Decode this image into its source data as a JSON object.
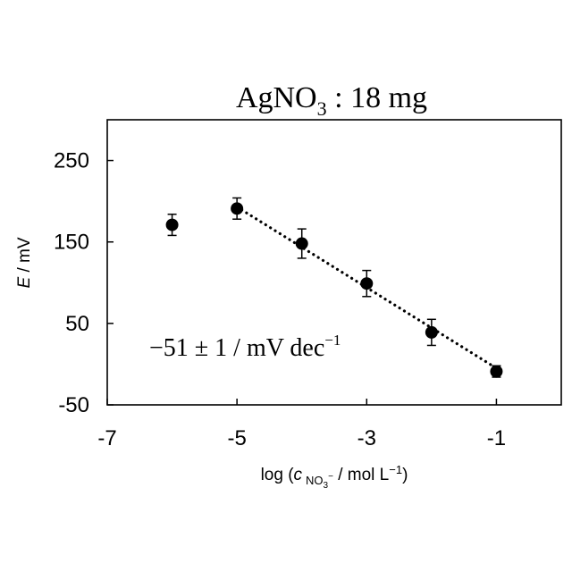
{
  "chart_data": {
    "type": "scatter",
    "title": {
      "main": "AgNO",
      "subscript": "3",
      "suffix": " : 18 mg"
    },
    "xlabel": {
      "prefix": "log (",
      "var": "c",
      "sub": "NO",
      "sub_sub": "3",
      "sub_charge": "−",
      "suffix": " / mol L",
      "suffix_sup": "−1",
      "close": ")"
    },
    "ylabel": {
      "var": "E",
      "unit": " / mV"
    },
    "xlim": [
      -7,
      0
    ],
    "ylim": [
      -50,
      300
    ],
    "xticks": [
      -7,
      -5,
      -3,
      -1
    ],
    "xtick_labels": [
      "-7",
      "-5",
      "-3",
      "-1"
    ],
    "yticks": [
      -50,
      50,
      150,
      250
    ],
    "ytick_labels": [
      "-50",
      "50",
      "150",
      "250"
    ],
    "grid": false,
    "legend": "none",
    "series": [
      {
        "marker": "circle",
        "color": "#000000",
        "x": [
          -6,
          -5,
          -4,
          -3,
          -2,
          -1
        ],
        "y": [
          171,
          191,
          148,
          99,
          39,
          -9
        ],
        "yerr": [
          13,
          13,
          18,
          16,
          16,
          7
        ]
      }
    ],
    "fit_line": {
      "style": "dotted",
      "color": "#000000",
      "x": [
        -5,
        -1
      ],
      "y": [
        193,
        -5
      ]
    },
    "annotation": {
      "text": "−51 ± 1 / mV dec",
      "sup": "−1"
    }
  }
}
